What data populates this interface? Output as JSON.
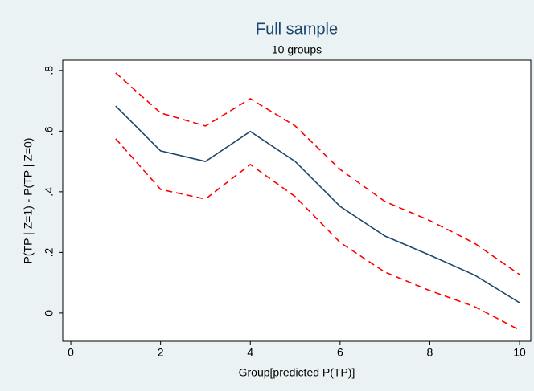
{
  "chart_data": {
    "type": "line",
    "title": "Full sample",
    "subtitle": "10 groups",
    "x_label": "Group[predicted P(TP)]",
    "y_label": "P(TP | Z=1) - P(TP | Z=0)",
    "x": [
      1,
      2,
      3,
      4,
      5,
      6,
      7,
      8,
      9,
      10
    ],
    "series": [
      {
        "color": "#1a476f",
        "dashed": false,
        "values": [
          0.683,
          0.535,
          0.5,
          0.599,
          0.5,
          0.352,
          0.254,
          0.191,
          0.125,
          0.034
        ]
      },
      {
        "color": "#ff0000",
        "dashed": true,
        "values": [
          0.792,
          0.66,
          0.617,
          0.707,
          0.617,
          0.474,
          0.368,
          0.305,
          0.23,
          0.127
        ]
      },
      {
        "color": "#ff0000",
        "dashed": true,
        "values": [
          0.575,
          0.408,
          0.376,
          0.49,
          0.384,
          0.233,
          0.135,
          0.074,
          0.021,
          -0.056
        ]
      }
    ],
    "xlim": [
      -0.18,
      10.25
    ],
    "xticks": [
      0,
      2,
      4,
      6,
      8,
      10
    ],
    "ylim": [
      -0.093,
      0.834
    ],
    "yticks": [
      0,
      {
        "value": 0.2,
        "label": ".2"
      },
      {
        "value": 0.4,
        "label": ".4"
      },
      {
        "value": 0.6,
        "label": ".6"
      },
      {
        "value": 0.8,
        "label": ".8"
      }
    ],
    "grid": false
  }
}
